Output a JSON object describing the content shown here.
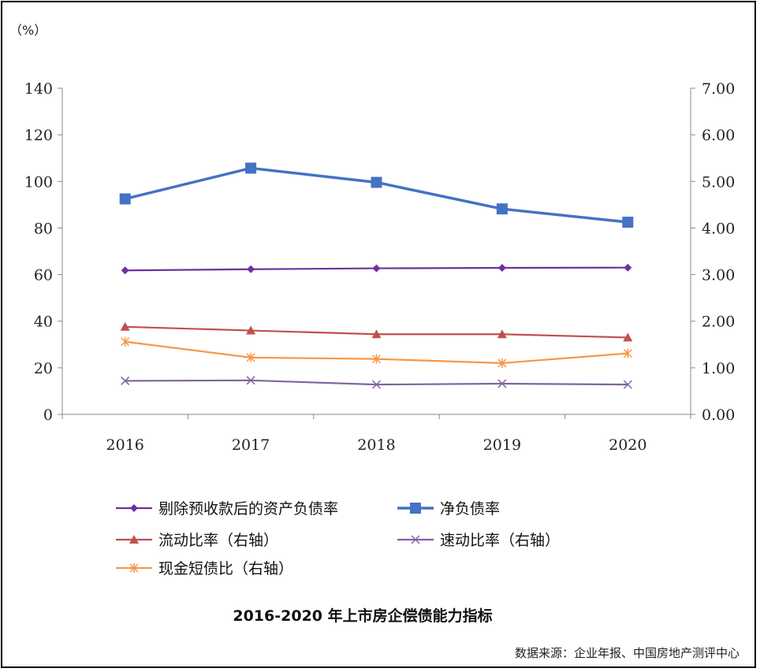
{
  "chart_data": {
    "type": "line",
    "title": "2016-2020 年上市房企偿债能力指标",
    "source": "数据来源：企业年报、中国房地产测评中心",
    "left_axis_unit": "（%）",
    "categories": [
      "2016",
      "2017",
      "2018",
      "2019",
      "2020"
    ],
    "left_axis": {
      "ylim": [
        0,
        140
      ],
      "ticks": [
        "0",
        "20",
        "40",
        "60",
        "80",
        "100",
        "120",
        "140"
      ]
    },
    "right_axis": {
      "ylim": [
        0,
        7
      ],
      "ticks": [
        "0.00",
        "1.00",
        "2.00",
        "3.00",
        "4.00",
        "5.00",
        "6.00",
        "7.00"
      ]
    },
    "series": [
      {
        "name": "剔除预收款后的资产负债率",
        "axis": "left",
        "marker": "diamond",
        "color": "#7030A0",
        "values": [
          61.8,
          62.3,
          62.7,
          62.9,
          63.0
        ]
      },
      {
        "name": "净负债率",
        "axis": "left",
        "marker": "square",
        "color": "#4472C4",
        "values": [
          92.5,
          105.7,
          99.6,
          88.2,
          82.5
        ]
      },
      {
        "name": "流动比率（右轴）",
        "axis": "right",
        "marker": "triangle",
        "color": "#C0504D",
        "values": [
          1.88,
          1.8,
          1.72,
          1.72,
          1.65
        ]
      },
      {
        "name": "速动比率（右轴）",
        "axis": "right",
        "marker": "x",
        "color": "#8064A2",
        "values": [
          0.72,
          0.73,
          0.64,
          0.66,
          0.64
        ]
      },
      {
        "name": "现金短债比（右轴）",
        "axis": "right",
        "marker": "star",
        "color": "#F79646",
        "values": [
          1.56,
          1.22,
          1.19,
          1.1,
          1.31
        ]
      }
    ]
  }
}
